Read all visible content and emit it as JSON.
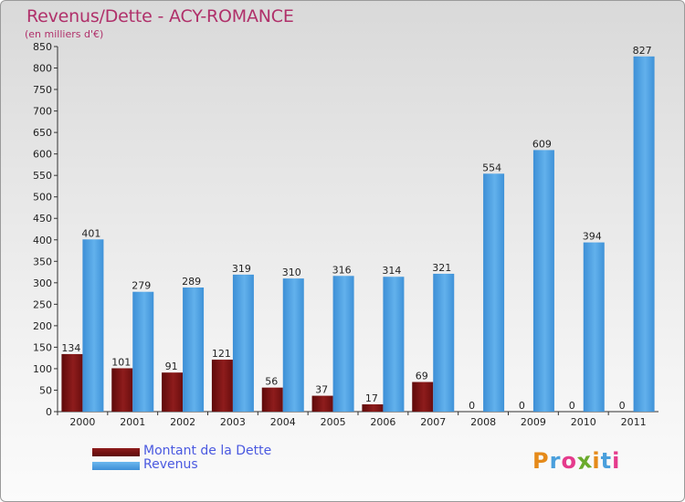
{
  "header": {
    "title": "Revenus/Dette - ACY-ROMANCE",
    "subtitle": "(en milliers d'€)"
  },
  "legend": {
    "debt_label": "Montant de la Dette",
    "revenue_label": "Revenus"
  },
  "logo": {
    "text": "Proxiti",
    "letters": [
      "P",
      "r",
      "o",
      "x",
      "i",
      "t",
      "i"
    ],
    "letter_colors": [
      "#e58a1a",
      "#4a9fdc",
      "#e53b8c",
      "#6aaa2c",
      "#e58a1a",
      "#4a9fdc",
      "#e53b8c"
    ]
  },
  "colors": {
    "title": "#b0306a",
    "debt": "#7a1111",
    "debt_light": "#b03030",
    "revenue": "#4b9ee0",
    "revenue_light": "#6cb8ee",
    "legend_text": "#4a59e0"
  },
  "chart_data": {
    "type": "bar",
    "title": "Revenus/Dette - ACY-ROMANCE",
    "ylabel": "(en milliers d'€)",
    "xlabel": "",
    "categories": [
      "2000",
      "2001",
      "2002",
      "2003",
      "2004",
      "2005",
      "2006",
      "2007",
      "2008",
      "2009",
      "2010",
      "2011"
    ],
    "series": [
      {
        "name": "Montant de la Dette",
        "values": [
          134,
          101,
          91,
          121,
          56,
          37,
          17,
          69,
          0,
          0,
          0,
          0
        ]
      },
      {
        "name": "Revenus",
        "values": [
          401,
          279,
          289,
          319,
          310,
          316,
          314,
          321,
          554,
          609,
          394,
          827
        ]
      }
    ],
    "ylim": [
      0,
      850
    ],
    "yticks": [
      0,
      50,
      100,
      150,
      200,
      250,
      300,
      350,
      400,
      450,
      500,
      550,
      600,
      650,
      700,
      750,
      800,
      850
    ],
    "grid": false,
    "legend_position": "bottom-left"
  }
}
